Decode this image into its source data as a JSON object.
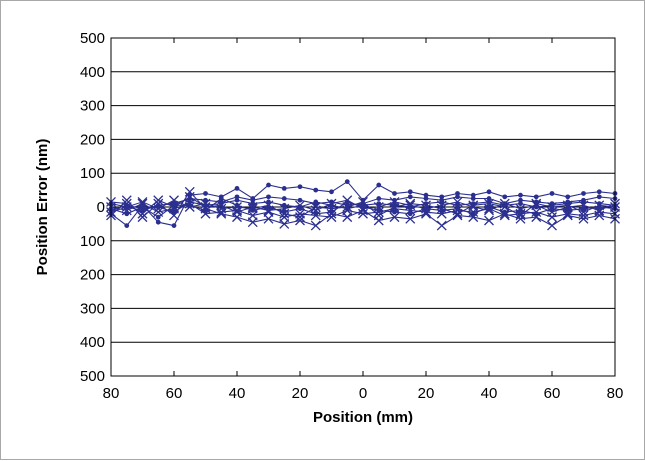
{
  "chart_data": {
    "type": "line",
    "title": "",
    "xlabel": "Position (mm)",
    "ylabel": "Position Error (nm)",
    "xlim": [
      -80,
      80
    ],
    "ylim": [
      -500,
      500
    ],
    "x_ticks": [
      -80,
      -60,
      -40,
      -20,
      0,
      20,
      40,
      60,
      80
    ],
    "x_tick_labels": [
      "80",
      "60",
      "40",
      "20",
      "0",
      "20",
      "40",
      "60",
      "80"
    ],
    "y_ticks": [
      500,
      400,
      300,
      200,
      100,
      0,
      -100,
      -200,
      -300,
      -400,
      -500
    ],
    "y_tick_labels": [
      "500",
      "400",
      "300",
      "200",
      "100",
      "0",
      "100",
      "200",
      "300",
      "400",
      "500"
    ],
    "grid": "horizontal",
    "legend": "none",
    "series_color": "#2b2f8f",
    "x": [
      -80,
      -75,
      -70,
      -65,
      -60,
      -55,
      -50,
      -45,
      -40,
      -35,
      -30,
      -25,
      -20,
      -15,
      -10,
      -5,
      0,
      5,
      10,
      15,
      20,
      25,
      30,
      35,
      40,
      45,
      50,
      55,
      60,
      65,
      70,
      75,
      80
    ],
    "series": [
      {
        "marker": "dot",
        "values": [
          -20,
          -55,
          5,
          -45,
          -55,
          35,
          40,
          30,
          55,
          25,
          65,
          55,
          60,
          50,
          45,
          75,
          20,
          65,
          40,
          45,
          35,
          30,
          40,
          35,
          45,
          30,
          35,
          30,
          40,
          30,
          40,
          45,
          40
        ]
      },
      {
        "marker": "cross",
        "values": [
          -25,
          20,
          -30,
          10,
          -25,
          45,
          -5,
          -20,
          -30,
          -45,
          -35,
          -50,
          -40,
          -55,
          -20,
          -30,
          -10,
          -40,
          -30,
          -35,
          -20,
          -55,
          -25,
          -30,
          -40,
          -20,
          -35,
          -30,
          -55,
          -25,
          -35,
          -25,
          -35
        ]
      },
      {
        "marker": "dot",
        "values": [
          10,
          0,
          -10,
          5,
          10,
          25,
          20,
          15,
          30,
          20,
          30,
          25,
          20,
          10,
          15,
          5,
          10,
          25,
          20,
          30,
          25,
          20,
          30,
          25,
          25,
          10,
          20,
          15,
          10,
          15,
          20,
          30,
          25
        ]
      },
      {
        "marker": "cross",
        "values": [
          0,
          -10,
          10,
          -15,
          -5,
          10,
          -20,
          -15,
          -10,
          -25,
          -15,
          -30,
          -20,
          -25,
          -30,
          -10,
          -20,
          -15,
          -5,
          -10,
          -15,
          -20,
          -10,
          -15,
          -5,
          -25,
          -20,
          -15,
          -30,
          -20,
          -25,
          -15,
          -20
        ]
      },
      {
        "marker": "dot",
        "values": [
          -10,
          5,
          -5,
          0,
          -15,
          15,
          5,
          10,
          20,
          10,
          15,
          5,
          0,
          15,
          5,
          -5,
          5,
          10,
          5,
          0,
          10,
          15,
          5,
          10,
          15,
          5,
          10,
          0,
          5,
          10,
          15,
          10,
          5
        ]
      },
      {
        "marker": "cross",
        "values": [
          15,
          10,
          -20,
          20,
          0,
          30,
          0,
          5,
          -15,
          0,
          -10,
          -5,
          5,
          -10,
          10,
          20,
          -5,
          0,
          15,
          5,
          -5,
          5,
          15,
          0,
          -10,
          10,
          -5,
          5,
          -15,
          0,
          5,
          -10,
          10
        ]
      },
      {
        "marker": "dot",
        "values": [
          -5,
          -20,
          0,
          -30,
          5,
          5,
          -10,
          25,
          5,
          -10,
          0,
          -15,
          -5,
          -20,
          -15,
          15,
          0,
          -10,
          -15,
          -20,
          -5,
          -10,
          -5,
          -20,
          0,
          -15,
          -10,
          -20,
          -5,
          -10,
          -5,
          0,
          -5
        ]
      },
      {
        "marker": "cross",
        "values": [
          -15,
          0,
          15,
          -5,
          20,
          0,
          10,
          -5,
          0,
          -5,
          5,
          -20,
          -30,
          0,
          -5,
          0,
          15,
          -25,
          0,
          10,
          5,
          -5,
          -20,
          5,
          10,
          0,
          -25,
          10,
          0,
          5,
          -15,
          5,
          0
        ]
      }
    ]
  }
}
